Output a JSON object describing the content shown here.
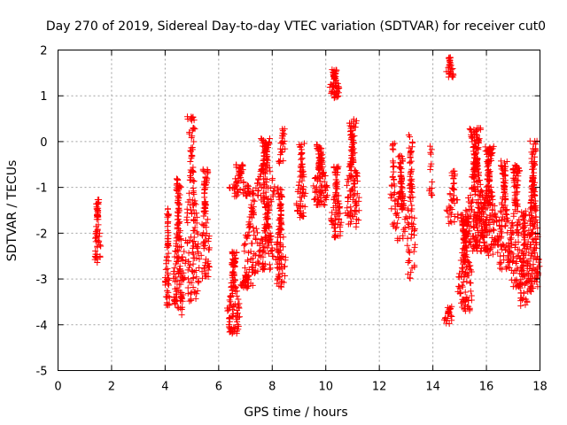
{
  "chart_data": {
    "type": "scatter",
    "title": "Day 270 of 2019, Sidereal Day-to-day VTEC variation (SDTVAR) for receiver cut0",
    "xlabel": "GPS time / hours",
    "ylabel": "SDTVAR / TECUs",
    "xlim": [
      0,
      18
    ],
    "ylim": [
      -5,
      2
    ],
    "xticks": [
      0,
      2,
      4,
      6,
      8,
      10,
      12,
      14,
      16,
      18
    ],
    "yticks": [
      -5,
      -4,
      -3,
      -2,
      -1,
      0,
      1,
      2
    ],
    "grid": true,
    "marker": "plus",
    "color": "#ff0000",
    "series": [
      {
        "name": "SDTVAR",
        "clusters": [
          {
            "x": [
              1.35,
              1.6
            ],
            "y": [
              -2.7,
              -1.25
            ],
            "n": 60
          },
          {
            "x": [
              4.0,
              4.2
            ],
            "y": [
              -3.6,
              -1.45
            ],
            "n": 55
          },
          {
            "x": [
              4.3,
              4.7
            ],
            "y": [
              -3.8,
              -0.8
            ],
            "n": 140
          },
          {
            "x": [
              4.7,
              5.3
            ],
            "y": [
              -3.5,
              0.6
            ],
            "n": 140
          },
          {
            "x": [
              5.3,
              5.7
            ],
            "y": [
              -3.0,
              -0.6
            ],
            "n": 90
          },
          {
            "x": [
              6.3,
              6.8
            ],
            "y": [
              -4.2,
              -2.4
            ],
            "n": 120
          },
          {
            "x": [
              6.4,
              7.2
            ],
            "y": [
              -1.2,
              -0.5
            ],
            "n": 60
          },
          {
            "x": [
              6.8,
              7.3
            ],
            "y": [
              -3.2,
              -2.9
            ],
            "n": 40
          },
          {
            "x": [
              6.9,
              7.6
            ],
            "y": [
              -2.9,
              -1.0
            ],
            "n": 80
          },
          {
            "x": [
              7.4,
              8.1
            ],
            "y": [
              -1.4,
              0.1
            ],
            "n": 110
          },
          {
            "x": [
              7.5,
              8.1
            ],
            "y": [
              -2.8,
              -1.3
            ],
            "n": 90
          },
          {
            "x": [
              8.1,
              8.5
            ],
            "y": [
              -3.2,
              -1.0
            ],
            "n": 100
          },
          {
            "x": [
              8.2,
              8.6
            ],
            "y": [
              -0.5,
              0.3
            ],
            "n": 25
          },
          {
            "x": [
              8.9,
              9.3
            ],
            "y": [
              -1.7,
              0.0
            ],
            "n": 70
          },
          {
            "x": [
              9.5,
              10.1
            ],
            "y": [
              -1.4,
              -0.05
            ],
            "n": 110
          },
          {
            "x": [
              10.1,
              10.55
            ],
            "y": [
              0.95,
              1.6
            ],
            "n": 60
          },
          {
            "x": [
              10.2,
              10.6
            ],
            "y": [
              -2.1,
              -0.5
            ],
            "n": 80
          },
          {
            "x": [
              10.7,
              11.3
            ],
            "y": [
              -1.9,
              0.5
            ],
            "n": 130
          },
          {
            "x": [
              12.4,
              12.65
            ],
            "y": [
              -2.0,
              0.05
            ],
            "n": 35
          },
          {
            "x": [
              12.6,
              13.0
            ],
            "y": [
              -2.2,
              -0.3
            ],
            "n": 80
          },
          {
            "x": [
              13.0,
              13.35
            ],
            "y": [
              -3.0,
              0.2
            ],
            "n": 80
          },
          {
            "x": [
              13.85,
              14.0
            ],
            "y": [
              -1.2,
              -0.1
            ],
            "n": 15
          },
          {
            "x": [
              14.5,
              14.8
            ],
            "y": [
              1.4,
              1.85
            ],
            "n": 30
          },
          {
            "x": [
              14.4,
              14.8
            ],
            "y": [
              -4.0,
              -3.6
            ],
            "n": 25
          },
          {
            "x": [
              14.5,
              15.0
            ],
            "y": [
              -1.8,
              -0.6
            ],
            "n": 40
          },
          {
            "x": [
              14.9,
              15.5
            ],
            "y": [
              -3.7,
              -1.6
            ],
            "n": 150
          },
          {
            "x": [
              15.2,
              16.0
            ],
            "y": [
              -2.4,
              0.3
            ],
            "n": 260
          },
          {
            "x": [
              15.8,
              16.4
            ],
            "y": [
              -2.5,
              -0.1
            ],
            "n": 170
          },
          {
            "x": [
              16.4,
              16.9
            ],
            "y": [
              -2.8,
              -0.4
            ],
            "n": 110
          },
          {
            "x": [
              16.8,
              17.4
            ],
            "y": [
              -3.2,
              -0.5
            ],
            "n": 130
          },
          {
            "x": [
              17.2,
              17.6
            ],
            "y": [
              -3.6,
              -1.5
            ],
            "n": 80
          },
          {
            "x": [
              17.5,
              18.0
            ],
            "y": [
              -3.3,
              0.05
            ],
            "n": 190
          }
        ]
      }
    ]
  }
}
